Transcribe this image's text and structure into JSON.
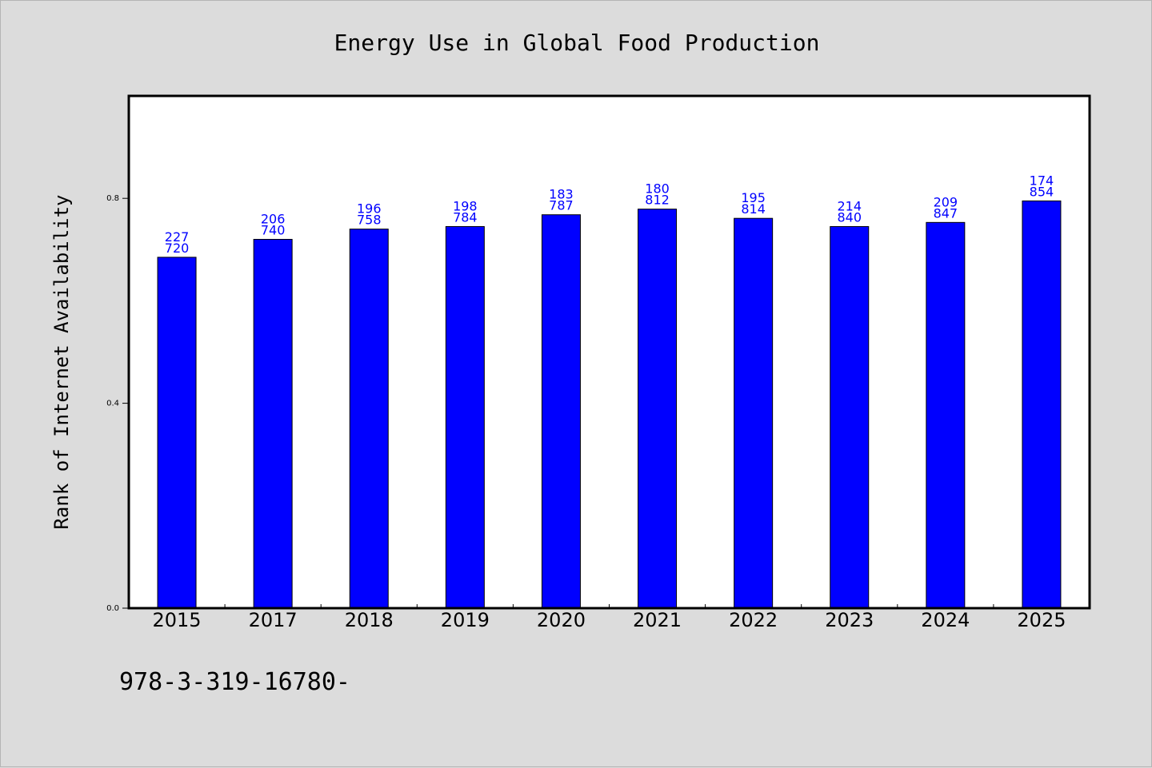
{
  "colors": {
    "background": "#dcdcdc",
    "plot_background": "#ffffff",
    "bar": "#0000ff",
    "label": "#0000ff",
    "frame": "#000000"
  },
  "footnote": "978-3-319-16780-",
  "chart_data": {
    "type": "bar",
    "title": "Energy Use in Global Food Production",
    "xlabel": "",
    "ylabel": "Rank of Internet Availability",
    "ylim": [
      0,
      1.0
    ],
    "yticks": [
      "0.0",
      "0.4",
      "0.8"
    ],
    "grid": false,
    "categories": [
      "2015",
      "2017",
      "2018",
      "2019",
      "2020",
      "2021",
      "2022",
      "2023",
      "2024",
      "2025"
    ],
    "values": [
      0.685,
      0.72,
      0.74,
      0.745,
      0.768,
      0.779,
      0.761,
      0.745,
      0.753,
      0.795
    ],
    "label_top": [
      "227",
      "206",
      "196",
      "198",
      "183",
      "180",
      "195",
      "214",
      "209",
      "174"
    ],
    "label_bottom": [
      "720",
      "740",
      "758",
      "784",
      "787",
      "812",
      "814",
      "840",
      "847",
      "854"
    ]
  }
}
